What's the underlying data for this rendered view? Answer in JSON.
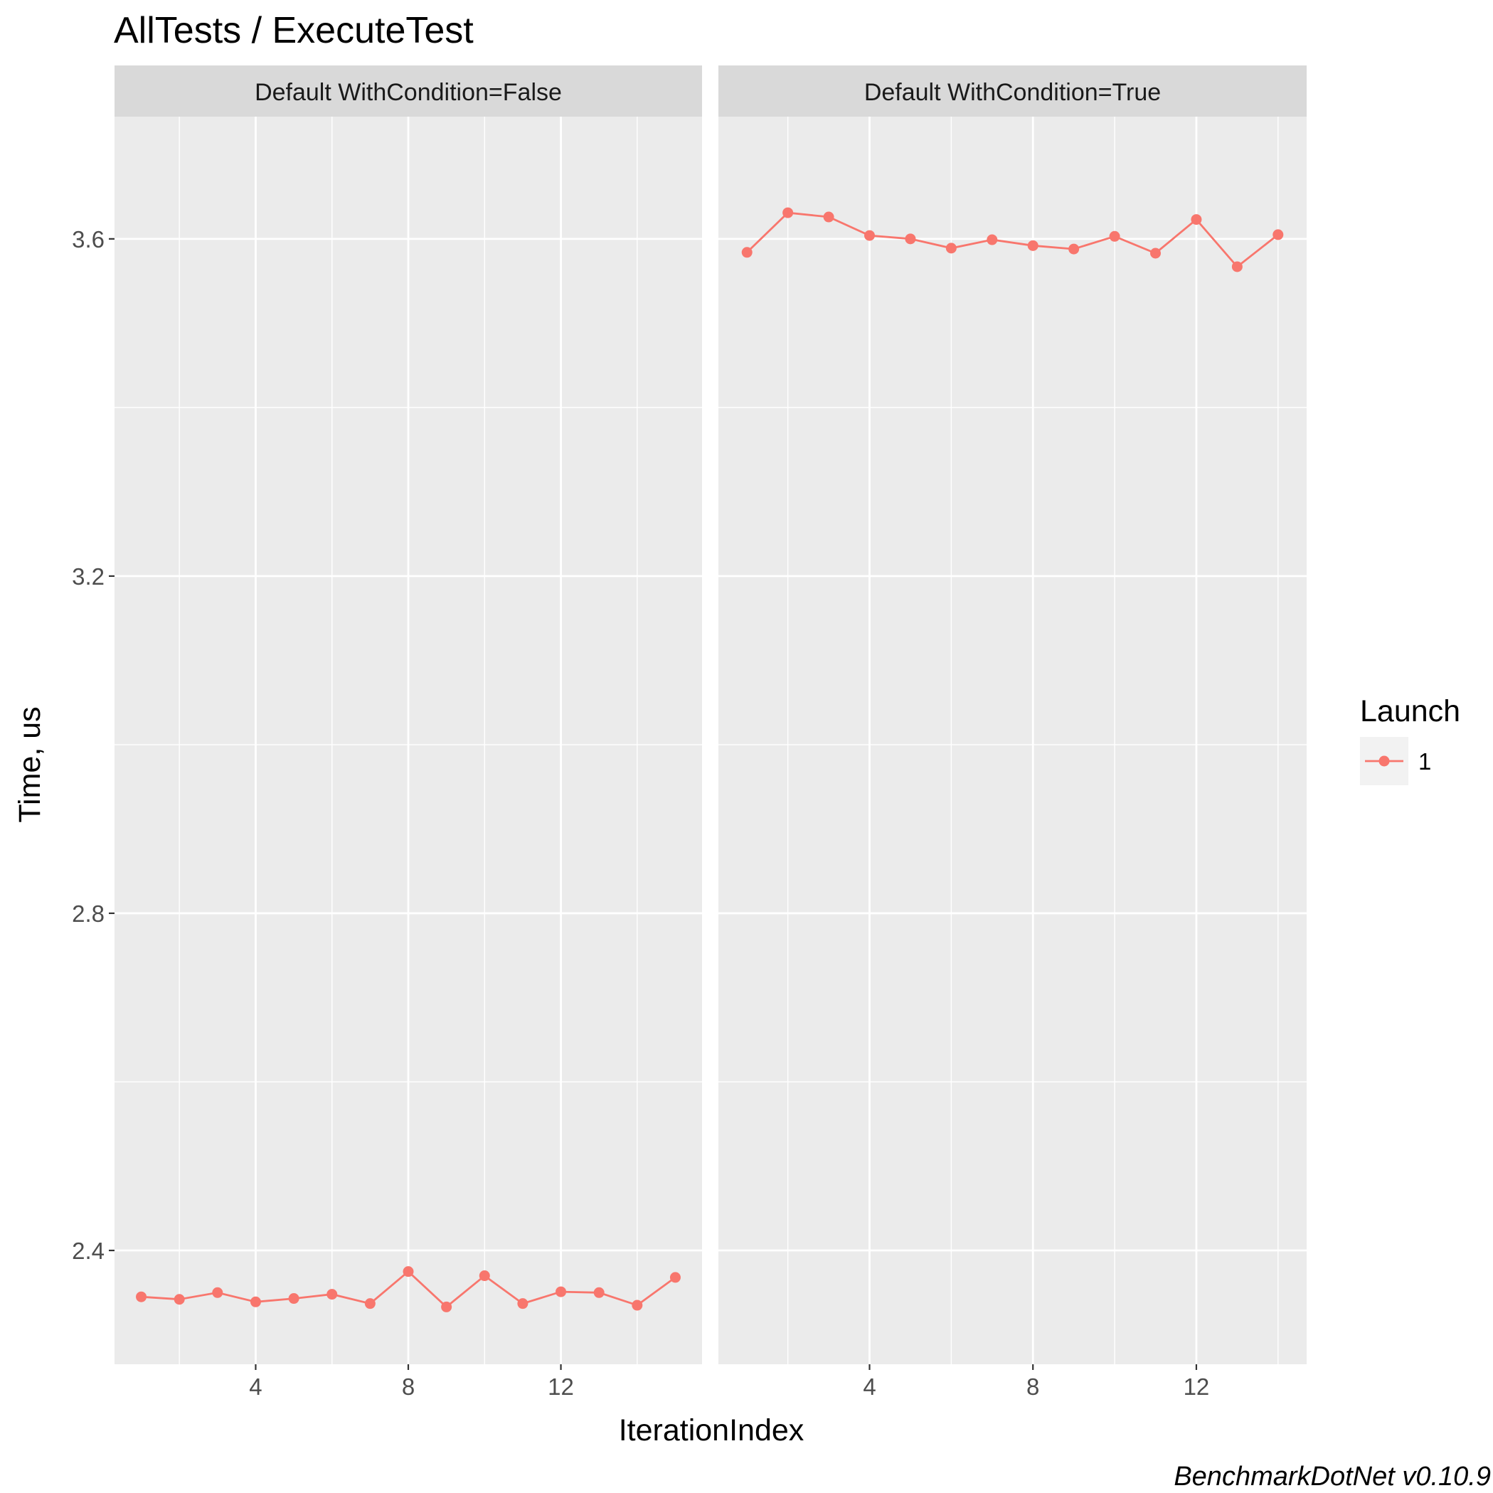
{
  "chart_data": {
    "type": "line",
    "title": "AllTests / ExecuteTest",
    "xlabel": "IterationIndex",
    "ylabel": "Time, us",
    "caption": "BenchmarkDotNet v0.10.9",
    "ylim": [
      2.265,
      3.745
    ],
    "yticks": [
      2.4,
      2.8,
      3.2,
      3.6
    ],
    "ytick_labels": [
      "2.4",
      "2.8",
      "3.2",
      "3.6"
    ],
    "grid": true,
    "legend": {
      "title": "Launch",
      "position": "right",
      "entries": [
        {
          "label": "1",
          "color": "#F8766D"
        }
      ]
    },
    "panels": [
      {
        "strip": "Default WithCondition=False",
        "xlim": [
          0.3,
          15.7
        ],
        "xticks": [
          4,
          8,
          12
        ],
        "xtick_labels": [
          "4",
          "8",
          "12"
        ],
        "series": [
          {
            "name": "1",
            "color": "#F8766D",
            "x": [
              1,
              2,
              3,
              4,
              5,
              6,
              7,
              8,
              9,
              10,
              11,
              12,
              13,
              14,
              15
            ],
            "y": [
              2.345,
              2.342,
              2.35,
              2.339,
              2.343,
              2.348,
              2.337,
              2.375,
              2.333,
              2.37,
              2.337,
              2.351,
              2.35,
              2.335,
              2.368
            ]
          }
        ]
      },
      {
        "strip": "Default WithCondition=True",
        "xlim": [
          0.3,
          14.7
        ],
        "xticks": [
          4,
          8,
          12
        ],
        "xtick_labels": [
          "4",
          "8",
          "12"
        ],
        "series": [
          {
            "name": "1",
            "color": "#F8766D",
            "x": [
              1,
              2,
              3,
              4,
              5,
              6,
              7,
              8,
              9,
              10,
              11,
              12,
              13,
              14
            ],
            "y": [
              3.584,
              3.631,
              3.626,
              3.604,
              3.6,
              3.589,
              3.599,
              3.592,
              3.588,
              3.603,
              3.583,
              3.623,
              3.567,
              3.605
            ]
          }
        ]
      }
    ]
  }
}
